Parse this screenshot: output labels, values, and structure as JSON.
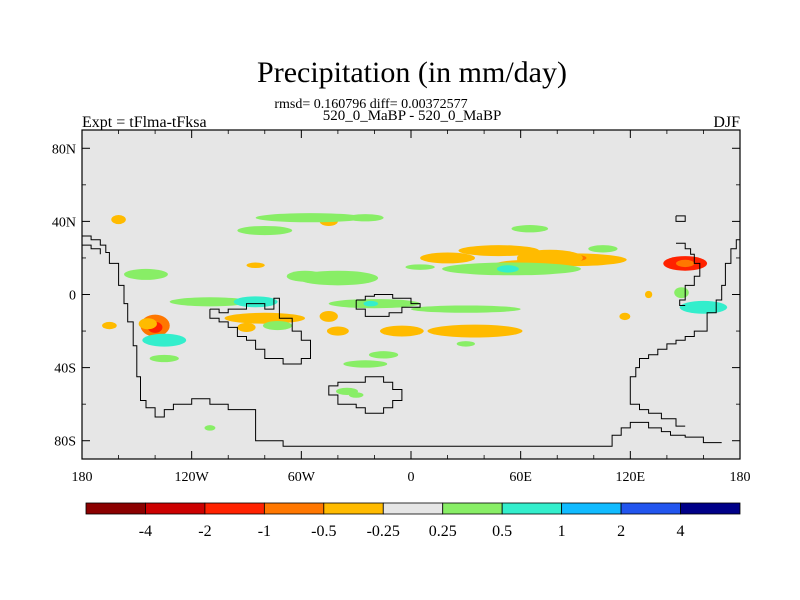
{
  "chart_data": {
    "type": "heatmap",
    "title": "Precipitation (in mm/day)",
    "subtitle_stats": "rmsd= 0.160796  diff= 0.00372577",
    "subtitle_cases": "520_0_MaBP - 520_0_MaBP",
    "left_label": "Expt = tFlma-tFksa",
    "right_label": "DJF",
    "x_axis": {
      "range": [
        -180,
        180
      ],
      "ticks": [
        {
          "value": -180,
          "label": "180"
        },
        {
          "value": -120,
          "label": "120W"
        },
        {
          "value": -60,
          "label": "60W"
        },
        {
          "value": 0,
          "label": "0"
        },
        {
          "value": 60,
          "label": "60E"
        },
        {
          "value": 120,
          "label": "120E"
        },
        {
          "value": 180,
          "label": "180"
        }
      ]
    },
    "y_axis": {
      "range": [
        -90,
        90
      ],
      "ticks": [
        {
          "value": 80,
          "label": "80N"
        },
        {
          "value": 40,
          "label": "40N"
        },
        {
          "value": 0,
          "label": "0"
        },
        {
          "value": -40,
          "label": "40S"
        },
        {
          "value": -80,
          "label": "80S"
        }
      ]
    },
    "background_color": "#e6e6e6",
    "colorbar": {
      "colors": [
        "#8b0000",
        "#cc0000",
        "#ff2200",
        "#ff7700",
        "#ffbb00",
        "#e6e6e6",
        "#88ee66",
        "#33eecc",
        "#11bbff",
        "#2255ee",
        "#000088"
      ],
      "labels": [
        "-4",
        "-2",
        "-1",
        "-0.5",
        "-0.25",
        "0.25",
        "0.5",
        "1",
        "2",
        "4"
      ]
    },
    "anomaly_regions": [
      {
        "lon": 150,
        "lat": 17,
        "rx": 12,
        "ry": 4,
        "value": -1.5
      },
      {
        "lon": 150,
        "lat": 17,
        "rx": 5,
        "ry": 2,
        "value": -1.0
      },
      {
        "lon": 88,
        "lat": 19,
        "rx": 30,
        "ry": 3.5,
        "value": -0.4
      },
      {
        "lon": 82,
        "lat": 20,
        "rx": 14,
        "ry": 2.5,
        "value": -0.6
      },
      {
        "lon": 65,
        "lat": 16,
        "rx": 20,
        "ry": 3,
        "value": -0.3
      },
      {
        "lon": 76,
        "lat": 20,
        "rx": 18,
        "ry": 4.5,
        "value": -0.3
      },
      {
        "lon": 48,
        "lat": 24,
        "rx": 22,
        "ry": 3,
        "value": -0.3
      },
      {
        "lon": 20,
        "lat": 20,
        "rx": 15,
        "ry": 3,
        "value": -0.3
      },
      {
        "lon": -140,
        "lat": -17,
        "rx": 8,
        "ry": 6,
        "value": -0.8
      },
      {
        "lon": -140,
        "lat": -18,
        "rx": 4,
        "ry": 3,
        "value": -1.5
      },
      {
        "lon": -144,
        "lat": -16,
        "rx": 5,
        "ry": 3,
        "value": -0.3
      },
      {
        "lon": -80,
        "lat": -13,
        "rx": 22,
        "ry": 3,
        "value": -0.3
      },
      {
        "lon": -90,
        "lat": -18,
        "rx": 5,
        "ry": 2.5,
        "value": -0.3
      },
      {
        "lon": -45,
        "lat": -12,
        "rx": 5,
        "ry": 3,
        "value": -0.3
      },
      {
        "lon": -40,
        "lat": -20,
        "rx": 6,
        "ry": 2.5,
        "value": -0.3
      },
      {
        "lon": -5,
        "lat": -20,
        "rx": 12,
        "ry": 3,
        "value": -0.3
      },
      {
        "lon": 35,
        "lat": -20,
        "rx": 26,
        "ry": 3.5,
        "value": -0.35
      },
      {
        "lon": -45,
        "lat": 40,
        "rx": 5,
        "ry": 2.5,
        "value": -0.3
      },
      {
        "lon": -160,
        "lat": 41,
        "rx": 4,
        "ry": 2.5,
        "value": -0.3
      },
      {
        "lon": 130,
        "lat": 0,
        "rx": 2,
        "ry": 2,
        "value": -0.3
      },
      {
        "lon": 117,
        "lat": -12,
        "rx": 3,
        "ry": 2,
        "value": -0.3
      },
      {
        "lon": -165,
        "lat": -17,
        "rx": 4,
        "ry": 2,
        "value": -0.3
      },
      {
        "lon": -85,
        "lat": 16,
        "rx": 5,
        "ry": 1.5,
        "value": -0.4
      },
      {
        "lon": -40,
        "lat": 9,
        "rx": 22,
        "ry": 4,
        "value": 0.35
      },
      {
        "lon": -58,
        "lat": 10,
        "rx": 10,
        "ry": 3,
        "value": 0.4
      },
      {
        "lon": 55,
        "lat": 14,
        "rx": 38,
        "ry": 3.5,
        "value": 0.4
      },
      {
        "lon": 53,
        "lat": 14,
        "rx": 6,
        "ry": 2,
        "value": 0.7
      },
      {
        "lon": 105,
        "lat": 25,
        "rx": 8,
        "ry": 2,
        "value": 0.3
      },
      {
        "lon": -55,
        "lat": 42,
        "rx": 30,
        "ry": 2.5,
        "value": 0.3
      },
      {
        "lon": -80,
        "lat": 35,
        "rx": 15,
        "ry": 2.5,
        "value": 0.3
      },
      {
        "lon": -25,
        "lat": 42,
        "rx": 10,
        "ry": 2,
        "value": 0.3
      },
      {
        "lon": 65,
        "lat": 36,
        "rx": 10,
        "ry": 2,
        "value": 0.3
      },
      {
        "lon": -145,
        "lat": 11,
        "rx": 12,
        "ry": 3,
        "value": 0.3
      },
      {
        "lon": -110,
        "lat": -4,
        "rx": 22,
        "ry": 2.5,
        "value": 0.4
      },
      {
        "lon": -85,
        "lat": -4,
        "rx": 12,
        "ry": 3,
        "value": 0.5
      },
      {
        "lon": -20,
        "lat": -5,
        "rx": 25,
        "ry": 2.5,
        "value": 0.4
      },
      {
        "lon": -22,
        "lat": -5,
        "rx": 4,
        "ry": 1.5,
        "value": 0.8
      },
      {
        "lon": 30,
        "lat": -8,
        "rx": 30,
        "ry": 2,
        "value": 0.3
      },
      {
        "lon": -135,
        "lat": -25,
        "rx": 12,
        "ry": 3.5,
        "value": 0.5
      },
      {
        "lon": -137,
        "lat": -25,
        "rx": 4,
        "ry": 2,
        "value": 0.8
      },
      {
        "lon": -73,
        "lat": -17,
        "rx": 8,
        "ry": 2.5,
        "value": 0.3
      },
      {
        "lon": -25,
        "lat": -38,
        "rx": 12,
        "ry": 2,
        "value": 0.3
      },
      {
        "lon": -35,
        "lat": -53,
        "rx": 6,
        "ry": 2,
        "value": 0.3
      },
      {
        "lon": -15,
        "lat": -33,
        "rx": 8,
        "ry": 2,
        "value": 0.3
      },
      {
        "lon": 160,
        "lat": -7,
        "rx": 13,
        "ry": 3.5,
        "value": 0.5
      },
      {
        "lon": 163,
        "lat": -7,
        "rx": 4,
        "ry": 2,
        "value": 0.8
      },
      {
        "lon": 148,
        "lat": 1,
        "rx": 4,
        "ry": 3,
        "value": 0.4
      },
      {
        "lon": -135,
        "lat": -35,
        "rx": 8,
        "ry": 2,
        "value": 0.3
      },
      {
        "lon": 5,
        "lat": 15,
        "rx": 8,
        "ry": 1.5,
        "value": 0.3
      },
      {
        "lon": -110,
        "lat": -73,
        "rx": 3,
        "ry": 1.5,
        "value": 0.3
      },
      {
        "lon": -30,
        "lat": -55,
        "rx": 4,
        "ry": 1.5,
        "value": 0.3
      },
      {
        "lon": 30,
        "lat": -27,
        "rx": 5,
        "ry": 1.5,
        "value": 0.3
      }
    ],
    "coastlines": [
      [
        [
          -180,
          32
        ],
        [
          -175,
          32
        ],
        [
          -175,
          30
        ],
        [
          -170,
          30
        ],
        [
          -170,
          27
        ],
        [
          -167,
          27
        ],
        [
          -167,
          23
        ],
        [
          -165,
          23
        ],
        [
          -165,
          17
        ],
        [
          -160,
          17
        ],
        [
          -160,
          5
        ],
        [
          -157,
          5
        ],
        [
          -157,
          -5
        ],
        [
          -155,
          -5
        ],
        [
          -155,
          -15
        ],
        [
          -152,
          -15
        ],
        [
          -152,
          -28
        ],
        [
          -150,
          -28
        ],
        [
          -150,
          -45
        ],
        [
          -148,
          -45
        ],
        [
          -148,
          -58
        ],
        [
          -145,
          -58
        ],
        [
          -145,
          -62
        ],
        [
          -140,
          -62
        ],
        [
          -140,
          -67
        ],
        [
          -135,
          -67
        ],
        [
          -135,
          -63
        ],
        [
          -130,
          -63
        ],
        [
          -130,
          -60
        ],
        [
          -120,
          -60
        ],
        [
          -120,
          -57
        ],
        [
          -110,
          -57
        ],
        [
          -110,
          -60
        ],
        [
          -100,
          -60
        ],
        [
          -100,
          -63
        ],
        [
          -85,
          -63
        ],
        [
          -85,
          -80
        ],
        [
          -70,
          -80
        ],
        [
          -70,
          -83
        ],
        [
          0,
          -83
        ],
        [
          110,
          -83
        ],
        [
          110,
          -77
        ],
        [
          115,
          -77
        ],
        [
          115,
          -73
        ],
        [
          120,
          -73
        ],
        [
          120,
          -70
        ],
        [
          130,
          -70
        ],
        [
          130,
          -73
        ],
        [
          137,
          -73
        ],
        [
          137,
          -75
        ],
        [
          142,
          -75
        ],
        [
          142,
          -77
        ],
        [
          150,
          -77
        ],
        [
          150,
          -78
        ],
        [
          160,
          -78
        ],
        [
          160,
          -81
        ],
        [
          170,
          -81
        ]
      ],
      [
        [
          180,
          30
        ],
        [
          178,
          30
        ],
        [
          178,
          25
        ],
        [
          175,
          25
        ],
        [
          175,
          17
        ],
        [
          172,
          17
        ],
        [
          172,
          5
        ],
        [
          170,
          5
        ],
        [
          170,
          -3
        ],
        [
          167,
          -3
        ],
        [
          167,
          -10
        ],
        [
          162,
          -10
        ],
        [
          162,
          -20
        ],
        [
          155,
          -20
        ],
        [
          155,
          -23
        ],
        [
          150,
          -23
        ],
        [
          150,
          -25
        ],
        [
          145,
          -25
        ],
        [
          145,
          -27
        ],
        [
          140,
          -27
        ],
        [
          140,
          -30
        ],
        [
          135,
          -30
        ],
        [
          135,
          -33
        ],
        [
          130,
          -33
        ],
        [
          130,
          -35
        ],
        [
          125,
          -35
        ],
        [
          125,
          -40
        ],
        [
          123,
          -40
        ],
        [
          123,
          -45
        ],
        [
          120,
          -45
        ],
        [
          120,
          -60
        ],
        [
          125,
          -60
        ],
        [
          125,
          -63
        ],
        [
          130,
          -63
        ],
        [
          130,
          -65
        ],
        [
          137,
          -65
        ],
        [
          137,
          -68
        ],
        [
          145,
          -68
        ],
        [
          145,
          -72
        ],
        [
          150,
          -72
        ]
      ],
      [
        [
          145,
          28
        ],
        [
          150,
          28
        ],
        [
          150,
          25
        ],
        [
          153,
          25
        ],
        [
          153,
          22
        ],
        [
          155,
          22
        ],
        [
          155,
          17
        ],
        [
          158,
          17
        ],
        [
          158,
          10
        ],
        [
          155,
          10
        ],
        [
          155,
          5
        ],
        [
          150,
          5
        ],
        [
          150,
          -3
        ],
        [
          147,
          -3
        ],
        [
          147,
          -6
        ],
        [
          150,
          -6
        ]
      ],
      [
        [
          -180,
          27
        ],
        [
          -175,
          27
        ],
        [
          -175,
          25
        ],
        [
          -170,
          25
        ],
        [
          -170,
          22
        ]
      ],
      [
        [
          145,
          43
        ],
        [
          150,
          43
        ],
        [
          150,
          40
        ],
        [
          145,
          40
        ],
        [
          145,
          43
        ]
      ],
      [
        [
          -110,
          -8
        ],
        [
          -105,
          -8
        ],
        [
          -105,
          -10
        ],
        [
          -100,
          -10
        ],
        [
          -100,
          -8
        ],
        [
          -90,
          -8
        ],
        [
          -90,
          -5
        ],
        [
          -80,
          -5
        ],
        [
          -80,
          -8
        ],
        [
          -75,
          -8
        ],
        [
          -75,
          -2
        ],
        [
          -72,
          -2
        ],
        [
          -72,
          -13
        ],
        [
          -65,
          -13
        ],
        [
          -65,
          -20
        ],
        [
          -60,
          -20
        ],
        [
          -60,
          -25
        ],
        [
          -55,
          -25
        ],
        [
          -55,
          -35
        ],
        [
          -60,
          -35
        ],
        [
          -60,
          -38
        ],
        [
          -70,
          -38
        ],
        [
          -70,
          -35
        ],
        [
          -80,
          -35
        ],
        [
          -80,
          -30
        ],
        [
          -85,
          -30
        ],
        [
          -85,
          -25
        ],
        [
          -90,
          -25
        ],
        [
          -90,
          -23
        ],
        [
          -95,
          -23
        ],
        [
          -95,
          -18
        ],
        [
          -100,
          -18
        ],
        [
          -100,
          -15
        ],
        [
          -105,
          -15
        ],
        [
          -105,
          -13
        ],
        [
          -110,
          -13
        ],
        [
          -110,
          -8
        ]
      ],
      [
        [
          -30,
          -3
        ],
        [
          -25,
          -3
        ],
        [
          -25,
          -1
        ],
        [
          -20,
          -1
        ],
        [
          -20,
          0
        ],
        [
          -10,
          0
        ],
        [
          -10,
          -2
        ],
        [
          0,
          -2
        ],
        [
          0,
          -5
        ],
        [
          5,
          -5
        ],
        [
          5,
          -7
        ],
        [
          -5,
          -7
        ],
        [
          -5,
          -10
        ],
        [
          -12,
          -10
        ],
        [
          -12,
          -12
        ],
        [
          -25,
          -12
        ],
        [
          -25,
          -8
        ],
        [
          -30,
          -8
        ],
        [
          -30,
          -3
        ]
      ],
      [
        [
          -30,
          -48
        ],
        [
          -25,
          -48
        ],
        [
          -25,
          -45
        ],
        [
          -15,
          -45
        ],
        [
          -15,
          -48
        ],
        [
          -10,
          -48
        ],
        [
          -10,
          -52
        ],
        [
          -5,
          -52
        ],
        [
          -5,
          -58
        ],
        [
          -10,
          -58
        ],
        [
          -10,
          -62
        ],
        [
          -15,
          -62
        ],
        [
          -15,
          -65
        ],
        [
          -25,
          -65
        ],
        [
          -25,
          -62
        ],
        [
          -30,
          -62
        ],
        [
          -30,
          -60
        ],
        [
          -40,
          -60
        ],
        [
          -40,
          -55
        ],
        [
          -45,
          -55
        ],
        [
          -45,
          -50
        ],
        [
          -40,
          -50
        ],
        [
          -40,
          -48
        ],
        [
          -30,
          -48
        ]
      ]
    ]
  }
}
